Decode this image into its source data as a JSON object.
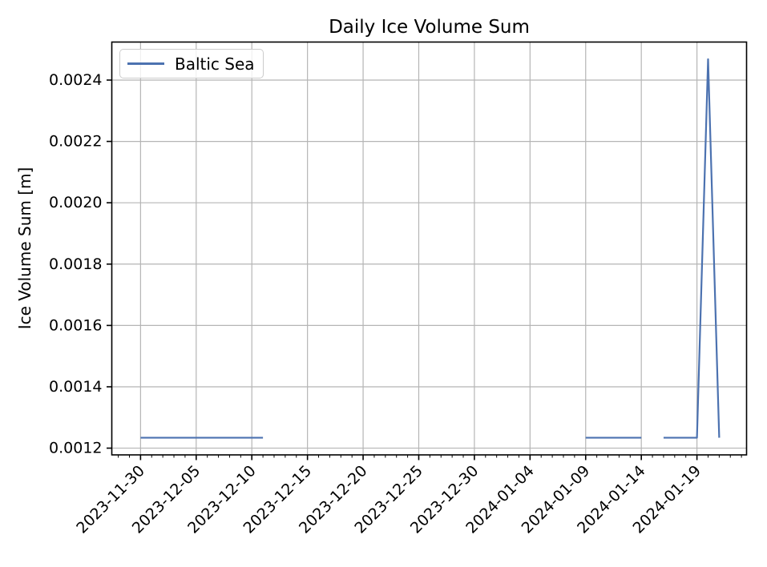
{
  "chart_data": {
    "type": "line",
    "title": "Daily Ice Volume Sum",
    "xlabel": "",
    "ylabel": "Ice Volume Sum [m]",
    "grid": true,
    "background": "#ffffff",
    "legend": {
      "location": "upper left",
      "entries": [
        "Baltic Sea"
      ]
    },
    "series": [
      {
        "name": "Baltic Sea",
        "color": "#4C72B0",
        "segments": [
          {
            "x": [
              "2023-11-30",
              "2023-12-01",
              "2023-12-02",
              "2023-12-03",
              "2023-12-04",
              "2023-12-05",
              "2023-12-06",
              "2023-12-07",
              "2023-12-08",
              "2023-12-09",
              "2023-12-10",
              "2023-12-11"
            ],
            "y": [
              0.001234,
              0.001234,
              0.001234,
              0.001234,
              0.001234,
              0.001234,
              0.001234,
              0.001234,
              0.001234,
              0.001234,
              0.001234,
              0.001234
            ]
          },
          {
            "x": [
              "2024-01-09",
              "2024-01-10",
              "2024-01-11",
              "2024-01-12",
              "2024-01-13",
              "2024-01-14"
            ],
            "y": [
              0.001234,
              0.001234,
              0.001234,
              0.001234,
              0.001234,
              0.001234
            ]
          },
          {
            "x": [
              "2024-01-16",
              "2024-01-17",
              "2024-01-18",
              "2024-01-19",
              "2024-01-20",
              "2024-01-21"
            ],
            "y": [
              0.001234,
              0.001234,
              0.001234,
              0.001234,
              0.002468,
              0.001234
            ]
          }
        ]
      }
    ],
    "x_major_ticks": [
      "2023-11-30",
      "2023-12-05",
      "2023-12-10",
      "2023-12-15",
      "2023-12-20",
      "2023-12-25",
      "2023-12-30",
      "2024-01-04",
      "2024-01-09",
      "2024-01-14",
      "2024-01-19"
    ],
    "x_minor_tick_interval_days": 1,
    "x_tick_rotation_deg": 45,
    "y_ticks": [
      0.0012,
      0.0014,
      0.0016,
      0.0018,
      0.002,
      0.0022,
      0.0024
    ],
    "y_tick_labels": [
      "0.0012",
      "0.0014",
      "0.0016",
      "0.0018",
      "0.0020",
      "0.0022",
      "0.0024"
    ],
    "xlim": [
      "2023-11-27T10:00:00Z",
      "2024-01-23T11:00:00Z"
    ],
    "ylim": [
      0.001178,
      0.002524
    ],
    "colors": {
      "grid": "#b5b5b5",
      "spine": "#000000",
      "tick": "#000000",
      "tick_label": "#000000",
      "title": "#000000",
      "legend_border": "#cccccc"
    }
  }
}
